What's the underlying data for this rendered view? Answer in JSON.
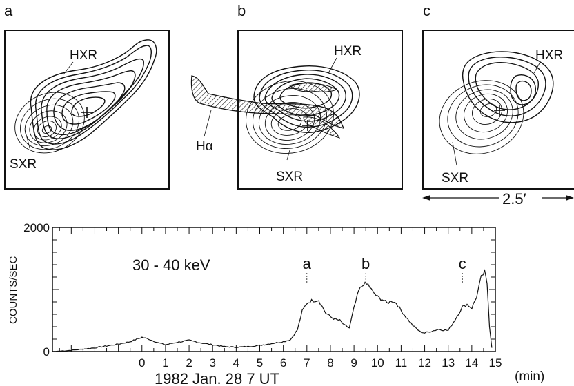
{
  "panels": [
    {
      "letter": "a",
      "hxr_label": "HXR",
      "sxr_label": "SXR"
    },
    {
      "letter": "b",
      "hxr_label": "HXR",
      "sxr_label": "SXR",
      "halpha_label": "Hα"
    },
    {
      "letter": "c",
      "hxr_label": "HXR",
      "sxr_label": "SXR"
    }
  ],
  "scale_bar_label": "2.5′",
  "chart_data": {
    "type": "line",
    "title": "",
    "energy_label": "30 - 40 keV",
    "ylabel": "COUNTS/SEC",
    "xlabel": "1982 Jan. 28  7 UT",
    "x_unit": "(min)",
    "ylim": [
      0,
      2000
    ],
    "xlim": [
      -3.8,
      15
    ],
    "y_ticklabels": [
      "0",
      "2000"
    ],
    "x_ticklabels": [
      "0",
      "1",
      "2",
      "3",
      "4",
      "5",
      "6",
      "7",
      "8",
      "9",
      "10",
      "11",
      "12",
      "13",
      "14",
      "15"
    ],
    "markers": [
      {
        "label": "a",
        "x": 7.0
      },
      {
        "label": "b",
        "x": 9.5
      },
      {
        "label": "c",
        "x": 13.6
      }
    ],
    "series": [
      {
        "x": [
          -3.8,
          -3.0,
          -2.0,
          -1.0,
          -0.5,
          0.0,
          0.3,
          0.7,
          1.0,
          1.5,
          2.0,
          2.5,
          3.0,
          3.5,
          4.0,
          4.5,
          5.0,
          5.5,
          6.0,
          6.3,
          6.6,
          6.8,
          7.0,
          7.2,
          7.5,
          7.8,
          8.0,
          8.2,
          8.4,
          8.6,
          8.8,
          9.0,
          9.2,
          9.4,
          9.6,
          9.8,
          10.0,
          10.2,
          10.4,
          10.6,
          10.8,
          11.0,
          11.2,
          11.5,
          11.8,
          12.0,
          12.3,
          12.6,
          13.0,
          13.3,
          13.6,
          13.8,
          14.0,
          14.2,
          14.4,
          14.55,
          14.65,
          14.75,
          14.85
        ],
        "y": [
          0,
          20,
          60,
          120,
          160,
          230,
          200,
          140,
          110,
          150,
          180,
          140,
          110,
          80,
          70,
          80,
          100,
          130,
          160,
          190,
          350,
          650,
          780,
          820,
          830,
          620,
          560,
          520,
          500,
          420,
          380,
          700,
          980,
          1090,
          1080,
          960,
          880,
          840,
          780,
          820,
          780,
          660,
          560,
          420,
          320,
          300,
          330,
          360,
          340,
          520,
          720,
          760,
          700,
          880,
          1200,
          1280,
          1100,
          400,
          60
        ]
      }
    ]
  }
}
